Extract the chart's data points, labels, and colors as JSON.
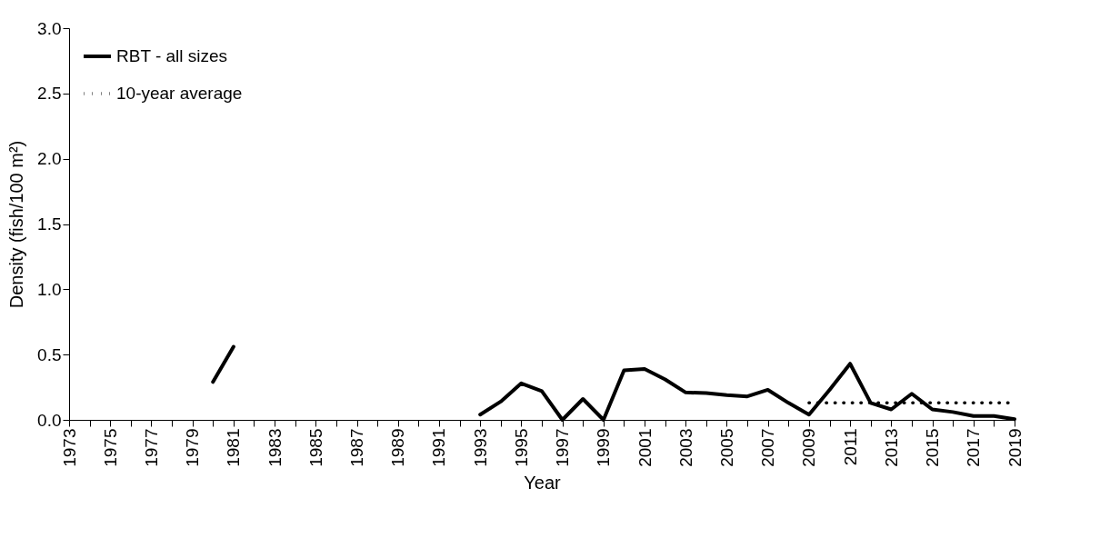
{
  "chart_data": {
    "type": "line",
    "xlabel": "Year",
    "ylabel": "Density (fish/100 m²)",
    "xlim": [
      1973,
      2019
    ],
    "ylim": [
      0,
      3
    ],
    "yticks": [
      {
        "value": 0,
        "label": "0.0"
      },
      0.5,
      {
        "value": 1,
        "label": "1.0"
      },
      1.5,
      {
        "value": 2,
        "label": "2.0"
      },
      2.5,
      {
        "value": 3,
        "label": "3.0"
      }
    ],
    "xticks": [
      1973,
      {
        "value": 1974,
        "label": null
      },
      1975,
      {
        "value": 1976,
        "label": null
      },
      1977,
      {
        "value": 1978,
        "label": null
      },
      1979,
      {
        "value": 1980,
        "label": null
      },
      1981,
      {
        "value": 1982,
        "label": null
      },
      1983,
      {
        "value": 1984,
        "label": null
      },
      1985,
      {
        "value": 1986,
        "label": null
      },
      1987,
      {
        "value": 1988,
        "label": null
      },
      1989,
      {
        "value": 1990,
        "label": null
      },
      1991,
      {
        "value": 1992,
        "label": null
      },
      1993,
      {
        "value": 1994,
        "label": null
      },
      1995,
      {
        "value": 1996,
        "label": null
      },
      1997,
      {
        "value": 1998,
        "label": null
      },
      1999,
      {
        "value": 2000,
        "label": null
      },
      2001,
      {
        "value": 2002,
        "label": null
      },
      2003,
      {
        "value": 2004,
        "label": null
      },
      2005,
      {
        "value": 2006,
        "label": null
      },
      2007,
      {
        "value": 2008,
        "label": null
      },
      2009,
      {
        "value": 2010,
        "label": null
      },
      2011,
      {
        "value": 2012,
        "label": null
      },
      2013,
      {
        "value": 2014,
        "label": null
      },
      2015,
      {
        "value": 2016,
        "label": null
      },
      2017,
      {
        "value": 2018,
        "label": null
      },
      2019
    ],
    "grid": false,
    "legend": "top left",
    "marker": "none",
    "series": [
      {
        "name": "RBT - all sizes",
        "color": "#000000",
        "line_style": "solid",
        "x": [
          1980,
          1981,
          1982,
          1983,
          1984,
          1985,
          1986,
          1987,
          1988,
          1989,
          1990,
          1991,
          1992,
          1993,
          1994,
          1995,
          1996,
          1997,
          1998,
          1999,
          2000,
          2001,
          2002,
          2003,
          2004,
          2005,
          2006,
          2007,
          2008,
          2009,
          2010,
          2011,
          2012,
          2013,
          2014,
          2015,
          2016,
          2017,
          2018,
          2019
        ],
        "values": [
          0.29,
          0.56,
          null,
          null,
          null,
          null,
          null,
          null,
          null,
          null,
          null,
          null,
          null,
          0.04,
          0.14,
          0.28,
          0.22,
          0.0,
          0.16,
          0.0,
          0.38,
          0.39,
          0.31,
          0.21,
          0.205,
          0.19,
          0.18,
          0.23,
          0.13,
          0.04,
          0.23,
          0.43,
          0.13,
          0.08,
          0.2,
          0.08,
          0.06,
          0.03,
          0.03,
          0.005
        ]
      },
      {
        "name": "10-year average",
        "color": "#000000",
        "line_style": "dotted",
        "x": [
          2009,
          2010,
          2011,
          2012,
          2013,
          2014,
          2015,
          2016,
          2017,
          2018,
          2019
        ],
        "values": [
          0.13,
          0.13,
          0.13,
          0.13,
          0.13,
          0.13,
          0.13,
          0.13,
          0.13,
          0.13,
          0.13
        ]
      }
    ]
  }
}
